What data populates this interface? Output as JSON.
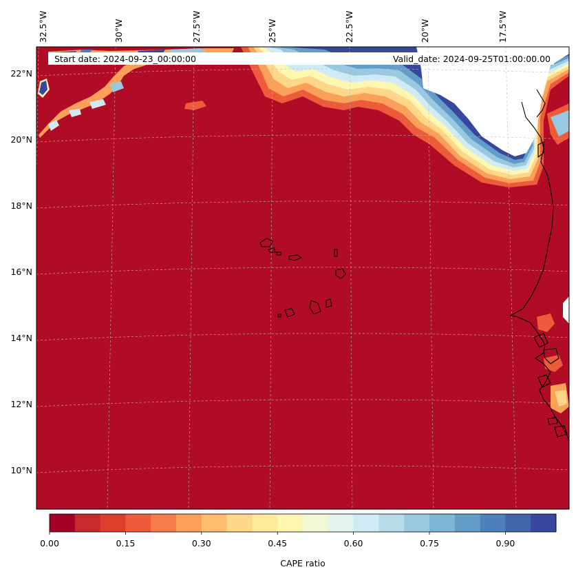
{
  "map": {
    "start_date": "Start date: 2024-09-23_00:00:00",
    "valid_date": "Valid_date: 2024-09-25T01:00:00.00",
    "lon_labels": [
      "32.5°W",
      "30°W",
      "27.5°W",
      "25°W",
      "22.5°W",
      "20°W",
      "17.5°W"
    ],
    "lat_labels": [
      "22°N",
      "20°N",
      "18°N",
      "16°N",
      "14°N",
      "12°N",
      "10°N"
    ],
    "variable": "CAPE ratio",
    "colors": {
      "dominant": "#b00c26",
      "land_masked": "#ffffff",
      "coastline": "#000000",
      "gridlines": "#b9b9b9"
    }
  },
  "colorbar": {
    "label": "CAPE ratio",
    "tick_labels": [
      "0.00",
      "0.15",
      "0.30",
      "0.45",
      "0.60",
      "0.75",
      "0.90"
    ],
    "range": [
      0,
      1.0
    ],
    "step": 0.05,
    "colors": [
      "#a50026",
      "#c62a2a",
      "#dc3d2d",
      "#ec5c3b",
      "#f67c4a",
      "#fba05b",
      "#fdbf6f",
      "#fed789",
      "#fee99d",
      "#fef7b3",
      "#f2f8d4",
      "#e3f4ec",
      "#d0ebf4",
      "#b6dcea",
      "#99c9e0",
      "#7cb5d5",
      "#649cc8",
      "#4e80b9",
      "#4065ab",
      "#36479d"
    ]
  }
}
